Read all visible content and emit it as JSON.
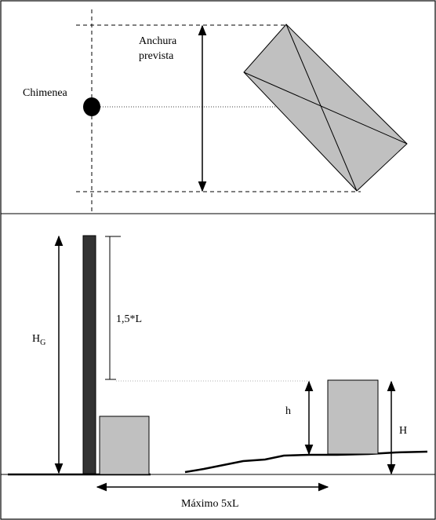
{
  "plan_view": {
    "chimney_label": "Chimenea",
    "width_label_line1": "Anchura",
    "width_label_line2": "prevista"
  },
  "elevation_view": {
    "height_label_main": "H",
    "height_label_sub": "G",
    "offset_label": "1,5*L",
    "small_h_label": "h",
    "building_height_label": "H",
    "distance_label": "Máximo 5xL"
  },
  "colors": {
    "chimney": "#333333",
    "building_fill": "#c0c0c0",
    "line": "#000000"
  }
}
